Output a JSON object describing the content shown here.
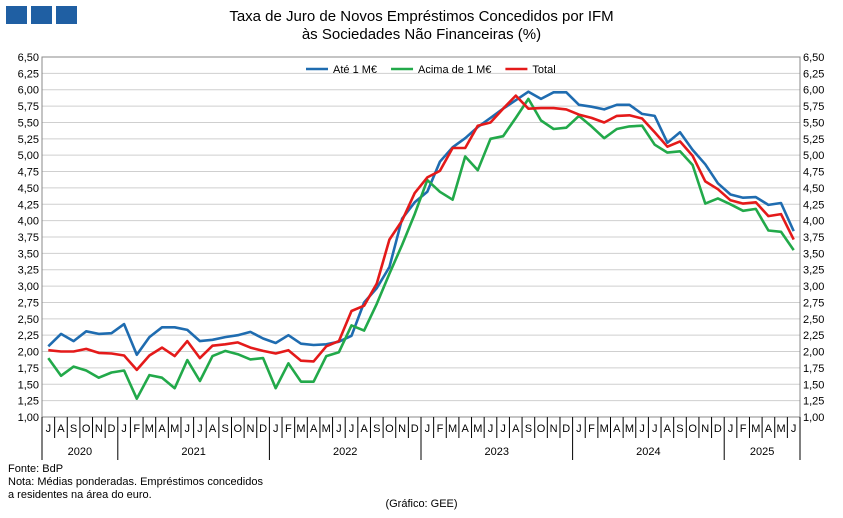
{
  "header": {
    "title_line1": "Taxa de Juro de Novos Empréstimos Concedidos por IFM",
    "title_line2": "às Sociedades Não Financeiras (%)"
  },
  "footer": {
    "source": "Fonte: BdP",
    "note_line1": "Nota: Médias ponderadas. Empréstimos concedidos",
    "note_line2": "a residentes na área do euro.",
    "credit": "(Gráfico: GEE)"
  },
  "chart_data": {
    "type": "line",
    "ylim": [
      1.0,
      6.5
    ],
    "yticks": [
      "1,00",
      "1,25",
      "1,50",
      "1,75",
      "2,00",
      "2,25",
      "2,50",
      "2,75",
      "3,00",
      "3,25",
      "3,50",
      "3,75",
      "4,00",
      "4,25",
      "4,50",
      "4,75",
      "5,00",
      "5,25",
      "5,50",
      "5,75",
      "6,00",
      "6,25",
      "6,50"
    ],
    "grid": true,
    "legend_position": "top-center",
    "months": [
      "J",
      "A",
      "S",
      "O",
      "N",
      "D",
      "J",
      "F",
      "M",
      "A",
      "M",
      "J",
      "J",
      "A",
      "S",
      "O",
      "N",
      "D",
      "J",
      "F",
      "M",
      "A",
      "M",
      "J",
      "J",
      "A",
      "S",
      "O",
      "N",
      "D",
      "J",
      "F",
      "M",
      "A",
      "M",
      "J",
      "J",
      "A",
      "S",
      "O",
      "N",
      "D",
      "J",
      "F",
      "M",
      "A",
      "M",
      "J",
      "J",
      "A",
      "S",
      "O",
      "N",
      "D",
      "J",
      "F",
      "M",
      "A",
      "M",
      "J"
    ],
    "years": [
      {
        "label": "2020",
        "start": 0,
        "end": 5
      },
      {
        "label": "2021",
        "start": 6,
        "end": 17
      },
      {
        "label": "2022",
        "start": 18,
        "end": 29
      },
      {
        "label": "2023",
        "start": 30,
        "end": 41
      },
      {
        "label": "2024",
        "start": 42,
        "end": 53
      },
      {
        "label": "2025",
        "start": 54,
        "end": 59
      }
    ],
    "series": [
      {
        "name": "Até 1 M€",
        "color": "#1f6cb0",
        "values": [
          2.08,
          2.27,
          2.16,
          2.31,
          2.27,
          2.28,
          2.42,
          1.95,
          2.22,
          2.37,
          2.37,
          2.33,
          2.16,
          2.18,
          2.22,
          2.25,
          2.3,
          2.2,
          2.13,
          2.25,
          2.12,
          2.1,
          2.11,
          2.15,
          2.24,
          2.75,
          2.97,
          3.29,
          4.03,
          4.28,
          4.44,
          4.9,
          5.12,
          5.26,
          5.43,
          5.57,
          5.71,
          5.84,
          5.97,
          5.86,
          5.96,
          5.96,
          5.77,
          5.74,
          5.7,
          5.77,
          5.77,
          5.63,
          5.6,
          5.19,
          5.35,
          5.08,
          4.86,
          4.57,
          4.4,
          4.35,
          4.36,
          4.24,
          4.27,
          3.84
        ]
      },
      {
        "name": "Acima de 1 M€",
        "color": "#22a94a",
        "values": [
          1.9,
          1.63,
          1.77,
          1.71,
          1.6,
          1.68,
          1.71,
          1.28,
          1.64,
          1.6,
          1.44,
          1.87,
          1.55,
          1.93,
          2.01,
          1.96,
          1.88,
          1.9,
          1.44,
          1.82,
          1.54,
          1.54,
          1.93,
          1.99,
          2.4,
          2.32,
          2.73,
          3.19,
          3.63,
          4.1,
          4.62,
          4.44,
          4.32,
          4.98,
          4.77,
          5.25,
          5.29,
          5.57,
          5.86,
          5.53,
          5.4,
          5.42,
          5.6,
          5.44,
          5.26,
          5.4,
          5.44,
          5.45,
          5.16,
          5.04,
          5.06,
          4.85,
          4.26,
          4.34,
          4.25,
          4.15,
          4.18,
          3.85,
          3.83,
          3.55
        ]
      },
      {
        "name": "Total",
        "color": "#e41a1a",
        "values": [
          2.02,
          2.0,
          2.0,
          2.04,
          1.98,
          1.97,
          1.94,
          1.72,
          1.94,
          2.06,
          1.93,
          2.16,
          1.9,
          2.09,
          2.11,
          2.14,
          2.06,
          2.01,
          1.97,
          2.02,
          1.86,
          1.85,
          2.08,
          2.16,
          2.62,
          2.7,
          3.04,
          3.71,
          4.0,
          4.42,
          4.66,
          4.76,
          5.11,
          5.11,
          5.45,
          5.5,
          5.71,
          5.91,
          5.71,
          5.72,
          5.72,
          5.7,
          5.62,
          5.57,
          5.5,
          5.6,
          5.61,
          5.56,
          5.35,
          5.13,
          5.21,
          4.99,
          4.6,
          4.48,
          4.31,
          4.26,
          4.28,
          4.07,
          4.1,
          3.71
        ]
      }
    ]
  }
}
